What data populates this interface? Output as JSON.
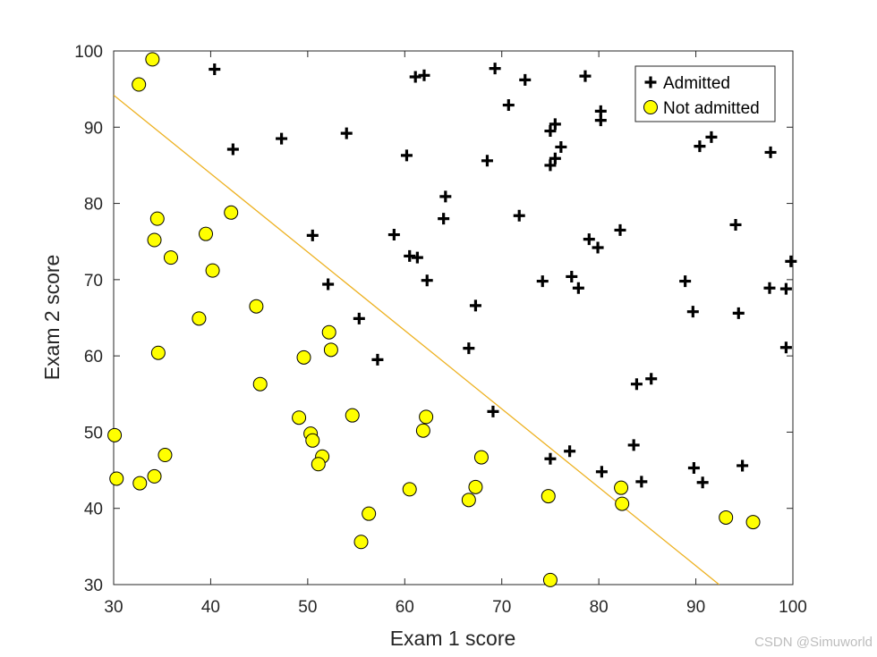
{
  "chart_data": {
    "type": "scatter",
    "xlabel": "Exam 1 score",
    "ylabel": "Exam 2 score",
    "xlim": [
      30,
      100
    ],
    "ylim": [
      30,
      100
    ],
    "xticks": [
      30,
      40,
      50,
      60,
      70,
      80,
      90,
      100
    ],
    "yticks": [
      30,
      40,
      50,
      60,
      70,
      80,
      90,
      100
    ],
    "grid": false,
    "legend_position": "top-right",
    "series": [
      {
        "name": "Admitted",
        "marker": "plus",
        "color": "#000000",
        "points": [
          [
            40.4,
            97.6
          ],
          [
            61.1,
            96.6
          ],
          [
            62.0,
            96.8
          ],
          [
            69.3,
            97.7
          ],
          [
            72.4,
            96.2
          ],
          [
            78.6,
            96.7
          ],
          [
            70.7,
            92.9
          ],
          [
            80.2,
            92.1
          ],
          [
            80.2,
            90.9
          ],
          [
            75.5,
            90.4
          ],
          [
            75.0,
            89.5
          ],
          [
            42.3,
            87.1
          ],
          [
            47.3,
            88.5
          ],
          [
            54.0,
            89.2
          ],
          [
            60.2,
            86.3
          ],
          [
            68.5,
            85.6
          ],
          [
            75.0,
            85.0
          ],
          [
            75.5,
            85.9
          ],
          [
            76.1,
            87.4
          ],
          [
            90.4,
            87.5
          ],
          [
            91.6,
            88.7
          ],
          [
            97.7,
            86.7
          ],
          [
            64.2,
            80.9
          ],
          [
            64.0,
            78.0
          ],
          [
            71.8,
            78.4
          ],
          [
            50.5,
            75.8
          ],
          [
            58.9,
            75.9
          ],
          [
            60.5,
            73.1
          ],
          [
            61.3,
            72.9
          ],
          [
            79.0,
            75.3
          ],
          [
            79.9,
            74.2
          ],
          [
            82.2,
            76.5
          ],
          [
            94.1,
            77.2
          ],
          [
            99.8,
            72.4
          ],
          [
            52.1,
            69.4
          ],
          [
            62.3,
            69.9
          ],
          [
            74.2,
            69.8
          ],
          [
            77.2,
            70.4
          ],
          [
            77.9,
            68.9
          ],
          [
            88.9,
            69.8
          ],
          [
            97.6,
            68.9
          ],
          [
            99.3,
            68.8
          ],
          [
            89.7,
            65.8
          ],
          [
            94.4,
            65.6
          ],
          [
            55.3,
            64.9
          ],
          [
            67.3,
            66.6
          ],
          [
            66.6,
            61.0
          ],
          [
            99.3,
            61.1
          ],
          [
            57.2,
            59.5
          ],
          [
            83.9,
            56.3
          ],
          [
            85.4,
            57.0
          ],
          [
            69.1,
            52.7
          ],
          [
            75.0,
            46.5
          ],
          [
            77.0,
            47.5
          ],
          [
            80.3,
            44.8
          ],
          [
            83.6,
            48.3
          ],
          [
            84.4,
            43.5
          ],
          [
            89.8,
            45.3
          ],
          [
            90.7,
            43.4
          ],
          [
            94.8,
            45.6
          ]
        ]
      },
      {
        "name": "Not admitted",
        "marker": "circle",
        "color": "#ffff00",
        "edgecolor": "#000000",
        "points": [
          [
            34.0,
            98.9
          ],
          [
            32.6,
            95.6
          ],
          [
            34.2,
            75.2
          ],
          [
            34.5,
            78.0
          ],
          [
            35.9,
            72.9
          ],
          [
            39.5,
            76.0
          ],
          [
            40.2,
            71.2
          ],
          [
            42.1,
            78.8
          ],
          [
            38.8,
            64.9
          ],
          [
            34.6,
            60.4
          ],
          [
            44.7,
            66.5
          ],
          [
            45.1,
            56.3
          ],
          [
            49.6,
            59.8
          ],
          [
            52.2,
            63.1
          ],
          [
            52.4,
            60.8
          ],
          [
            49.1,
            51.9
          ],
          [
            50.3,
            49.8
          ],
          [
            50.5,
            48.9
          ],
          [
            51.5,
            46.8
          ],
          [
            51.1,
            45.8
          ],
          [
            54.6,
            52.2
          ],
          [
            61.9,
            50.2
          ],
          [
            62.2,
            52.0
          ],
          [
            60.5,
            42.5
          ],
          [
            56.3,
            39.3
          ],
          [
            55.5,
            35.6
          ],
          [
            30.1,
            49.6
          ],
          [
            30.3,
            43.9
          ],
          [
            32.7,
            43.3
          ],
          [
            34.2,
            44.2
          ],
          [
            35.3,
            47.0
          ],
          [
            66.6,
            41.1
          ],
          [
            67.3,
            42.8
          ],
          [
            67.9,
            46.7
          ],
          [
            74.8,
            41.6
          ],
          [
            75.0,
            30.6
          ],
          [
            82.3,
            42.7
          ],
          [
            82.4,
            40.6
          ],
          [
            93.1,
            38.8
          ],
          [
            95.9,
            38.2
          ]
        ]
      }
    ],
    "decision_boundary": {
      "color": "#edb120",
      "points": [
        [
          30.0,
          94.2
        ],
        [
          92.4,
          30.0
        ]
      ]
    }
  },
  "watermark": "CSDN @Simuworld"
}
